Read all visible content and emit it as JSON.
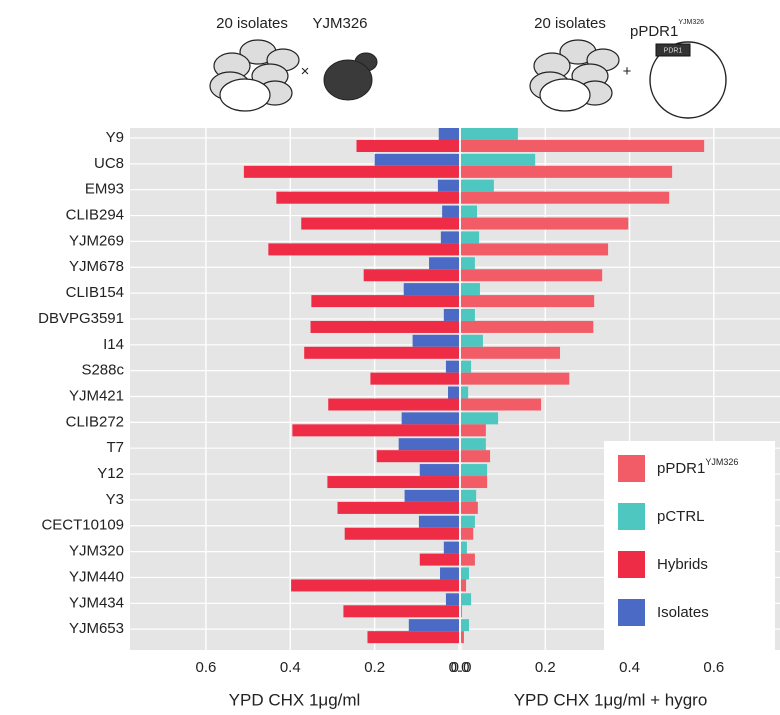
{
  "illustration": {
    "left_label": "20 isolates",
    "left_partner": "YJM326",
    "left_operator": "×",
    "right_label": "20 isolates",
    "right_partner": "pPDR1",
    "right_partner_superscript": "YJM326",
    "right_operator": "+",
    "plasmid_gene": "PDR1"
  },
  "chart_data": [
    {
      "type": "hbar",
      "xlabel": "YPD CHX 1μg/ml",
      "categories": [
        "Y9",
        "UC8",
        "EM93",
        "CLIB294",
        "YJM269",
        "YJM678",
        "CLIB154",
        "DBVPG3591",
        "I14",
        "S288c",
        "YJM421",
        "CLIB272",
        "T7",
        "Y12",
        "Y3",
        "CECT10109",
        "YJM320",
        "YJM440",
        "YJM434",
        "YJM653"
      ],
      "xlim": [
        0.78,
        0
      ],
      "xticks": [
        0.6,
        0.4,
        0.2,
        {
          "value": 0,
          "label": "0.0"
        }
      ],
      "grid": true,
      "series": [
        {
          "name": "Isolates",
          "color": "#4a6ac6",
          "values": [
            0.048,
            0.2,
            0.05,
            0.04,
            0.043,
            0.071,
            0.131,
            0.036,
            0.11,
            0.031,
            0.026,
            0.136,
            0.143,
            0.093,
            0.129,
            0.095,
            0.036,
            0.045,
            0.031,
            0.119
          ]
        },
        {
          "name": "Hybrids",
          "color": "#ee2c45",
          "values": [
            0.243,
            0.51,
            0.433,
            0.374,
            0.452,
            0.226,
            0.35,
            0.352,
            0.367,
            0.21,
            0.31,
            0.395,
            0.195,
            0.312,
            0.288,
            0.271,
            0.093,
            0.398,
            0.274,
            0.217
          ]
        }
      ]
    },
    {
      "type": "hbar",
      "xlabel": "YPD CHX 1μg/ml + hygro",
      "xlim": [
        0,
        0.757
      ],
      "xticks": [
        {
          "value": 0,
          "label": "0.0"
        },
        0.2,
        0.4,
        0.6
      ],
      "grid": true,
      "legend": "bottom-right",
      "series": [
        {
          "name": "pCTRL",
          "color": "#4dc7bf",
          "values": [
            0.135,
            0.176,
            0.078,
            0.038,
            0.043,
            0.033,
            0.045,
            0.033,
            0.052,
            0.024,
            0.017,
            0.088,
            0.059,
            0.062,
            0.036,
            0.033,
            0.014,
            0.019,
            0.024,
            0.019
          ]
        },
        {
          "name": "pPDR1",
          "name_superscript": "YJM326",
          "color": "#f25c67",
          "values": [
            0.577,
            0.501,
            0.494,
            0.397,
            0.349,
            0.335,
            0.316,
            0.314,
            0.235,
            0.257,
            0.19,
            0.059,
            0.069,
            0.062,
            0.04,
            0.029,
            0.033,
            0.012,
            0.002,
            0.007
          ]
        }
      ]
    }
  ]
}
